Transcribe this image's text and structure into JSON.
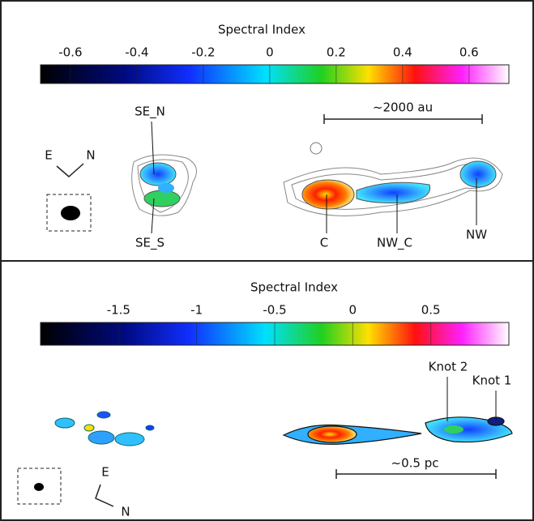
{
  "panels": [
    {
      "colorbar": {
        "title": "Spectral Index",
        "range": [
          -0.69,
          0.72
        ],
        "ticks": [
          -0.6,
          -0.4,
          -0.2,
          0,
          0.2,
          0.4,
          0.6
        ]
      },
      "labels": [
        "SE_N",
        "SE_S",
        "C",
        "NW_C",
        "NW"
      ],
      "scalebar": "~2000 au",
      "compass": {
        "east": "E",
        "north": "N"
      }
    },
    {
      "colorbar": {
        "title": "Spectral Index",
        "range": [
          -2.0,
          1.0
        ],
        "ticks": [
          -1.5,
          -1,
          -0.5,
          0,
          0.5
        ]
      },
      "labels": [
        "Knot 2",
        "Knot 1"
      ],
      "scalebar": "~0.5 pc",
      "compass": {
        "east": "E",
        "north": "N"
      }
    }
  ]
}
